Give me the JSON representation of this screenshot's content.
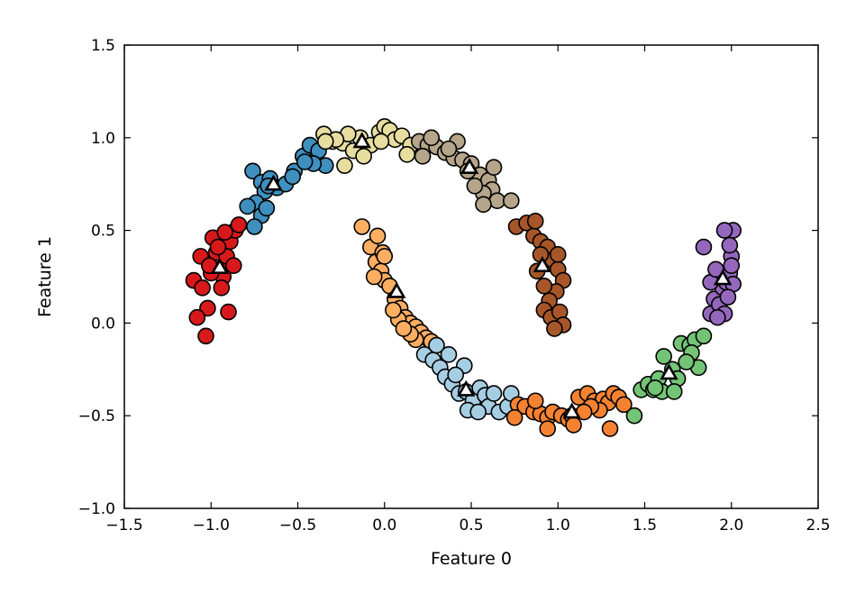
{
  "chart_data": {
    "type": "scatter",
    "title": "",
    "xlabel": "Feature 0",
    "ylabel": "Feature 1",
    "xlim": [
      -1.5,
      2.5
    ],
    "ylim": [
      -1.0,
      1.5
    ],
    "xticks": [
      -1.5,
      -1.0,
      -0.5,
      0.0,
      0.5,
      1.0,
      1.5,
      2.0,
      2.5
    ],
    "yticks": [
      -1.0,
      -0.5,
      0.0,
      0.5,
      1.0,
      1.5
    ],
    "xtick_labels": [
      "−1.5",
      "−1.0",
      "−0.5",
      "0.0",
      "0.5",
      "1.0",
      "1.5",
      "2.0",
      "2.5"
    ],
    "ytick_labels": [
      "−1.0",
      "−0.5",
      "0.0",
      "0.5",
      "1.0",
      "1.5"
    ],
    "grid": false,
    "legend": false,
    "marker_edge_color": "#000000",
    "series": [
      {
        "color": "#d7191c",
        "marker": "circle",
        "points": [
          [
            -1.1,
            0.23
          ],
          [
            -1.05,
            0.19
          ],
          [
            -1.02,
            0.08
          ],
          [
            -0.99,
            0.46
          ],
          [
            -0.97,
            0.38
          ],
          [
            -0.95,
            0.29
          ],
          [
            -0.93,
            0.25
          ],
          [
            -0.91,
            0.36
          ],
          [
            -0.89,
            0.44
          ],
          [
            -0.87,
            0.31
          ],
          [
            -0.86,
            0.5
          ],
          [
            -0.92,
            0.49
          ],
          [
            -1.06,
            0.36
          ],
          [
            -1.0,
            0.27
          ],
          [
            -1.08,
            0.03
          ],
          [
            -1.03,
            -0.07
          ],
          [
            -0.9,
            0.06
          ],
          [
            -0.84,
            0.53
          ],
          [
            -0.96,
            0.41
          ],
          [
            -1.01,
            0.31
          ],
          [
            -0.94,
            0.19
          ]
        ]
      },
      {
        "color": "#3f8fbf",
        "marker": "circle",
        "points": [
          [
            -0.76,
            0.82
          ],
          [
            -0.71,
            0.76
          ],
          [
            -0.69,
            0.71
          ],
          [
            -0.74,
            0.65
          ],
          [
            -0.79,
            0.63
          ],
          [
            -0.71,
            0.58
          ],
          [
            -0.66,
            0.78
          ],
          [
            -0.62,
            0.73
          ],
          [
            -0.57,
            0.75
          ],
          [
            -0.52,
            0.82
          ],
          [
            -0.47,
            0.9
          ],
          [
            -0.43,
            0.96
          ],
          [
            -0.38,
            0.93
          ],
          [
            -0.34,
            0.85
          ],
          [
            -0.41,
            0.86
          ],
          [
            -0.46,
            0.87
          ],
          [
            -0.53,
            0.79
          ],
          [
            -0.67,
            0.74
          ],
          [
            -0.75,
            0.52
          ],
          [
            -0.68,
            0.62
          ]
        ]
      },
      {
        "color": "#e6dd9f",
        "marker": "circle",
        "points": [
          [
            -0.35,
            1.02
          ],
          [
            -0.3,
            0.98
          ],
          [
            -0.24,
            0.97
          ],
          [
            -0.18,
            0.93
          ],
          [
            -0.14,
            1.0
          ],
          [
            -0.08,
            0.96
          ],
          [
            -0.03,
            1.03
          ],
          [
            0.0,
            1.06
          ],
          [
            0.03,
            1.04
          ],
          [
            0.06,
            0.99
          ],
          [
            -0.02,
            0.98
          ],
          [
            -0.21,
            1.02
          ],
          [
            -0.28,
            0.99
          ],
          [
            -0.12,
            0.9
          ],
          [
            -0.23,
            0.85
          ],
          [
            0.1,
            1.01
          ],
          [
            0.15,
            0.96
          ],
          [
            -0.34,
            0.98
          ],
          [
            0.13,
            0.91
          ]
        ]
      },
      {
        "color": "#b5a58a",
        "marker": "circle",
        "points": [
          [
            0.2,
            0.98
          ],
          [
            0.25,
            0.96
          ],
          [
            0.3,
            0.95
          ],
          [
            0.35,
            0.92
          ],
          [
            0.4,
            0.89
          ],
          [
            0.45,
            0.88
          ],
          [
            0.5,
            0.86
          ],
          [
            0.55,
            0.8
          ],
          [
            0.6,
            0.77
          ],
          [
            0.62,
            0.72
          ],
          [
            0.57,
            0.7
          ],
          [
            0.52,
            0.74
          ],
          [
            0.48,
            0.82
          ],
          [
            0.42,
            0.98
          ],
          [
            0.37,
            0.94
          ],
          [
            0.27,
            1.0
          ],
          [
            0.22,
            0.9
          ],
          [
            0.63,
            0.84
          ],
          [
            0.65,
            0.66
          ],
          [
            0.57,
            0.64
          ],
          [
            0.73,
            0.66
          ]
        ]
      },
      {
        "color": "#a65628",
        "marker": "circle",
        "points": [
          [
            0.76,
            0.52
          ],
          [
            0.82,
            0.54
          ],
          [
            0.86,
            0.47
          ],
          [
            0.9,
            0.44
          ],
          [
            0.94,
            0.41
          ],
          [
            0.97,
            0.34
          ],
          [
            1.0,
            0.29
          ],
          [
            1.03,
            0.23
          ],
          [
            0.99,
            0.17
          ],
          [
            0.95,
            0.12
          ],
          [
            0.92,
            0.07
          ],
          [
            0.96,
            0.03
          ],
          [
            1.01,
            0.06
          ],
          [
            1.03,
            -0.01
          ],
          [
            0.98,
            -0.03
          ],
          [
            0.9,
            0.37
          ],
          [
            0.88,
            0.28
          ],
          [
            0.92,
            0.2
          ],
          [
            0.87,
            0.55
          ],
          [
            1.0,
            0.37
          ]
        ]
      },
      {
        "color": "#fdae61",
        "marker": "circle",
        "points": [
          [
            -0.13,
            0.52
          ],
          [
            -0.08,
            0.41
          ],
          [
            -0.05,
            0.33
          ],
          [
            -0.02,
            0.28
          ],
          [
            0.0,
            0.23
          ],
          [
            0.03,
            0.2
          ],
          [
            0.06,
            0.13
          ],
          [
            0.09,
            0.08
          ],
          [
            0.12,
            0.03
          ],
          [
            0.15,
            0.0
          ],
          [
            0.18,
            -0.02
          ],
          [
            0.21,
            -0.05
          ],
          [
            0.24,
            -0.08
          ],
          [
            0.27,
            -0.1
          ],
          [
            0.18,
            -0.09
          ],
          [
            0.15,
            -0.06
          ],
          [
            0.08,
            0.02
          ],
          [
            0.05,
            0.07
          ],
          [
            -0.01,
            0.38
          ],
          [
            -0.04,
            0.47
          ],
          [
            0.11,
            -0.03
          ],
          [
            -0.06,
            0.25
          ],
          [
            0.0,
            0.36
          ]
        ]
      },
      {
        "color": "#a6cee3",
        "marker": "circle",
        "points": [
          [
            0.23,
            -0.17
          ],
          [
            0.28,
            -0.2
          ],
          [
            0.32,
            -0.24
          ],
          [
            0.35,
            -0.29
          ],
          [
            0.39,
            -0.33
          ],
          [
            0.43,
            -0.38
          ],
          [
            0.47,
            -0.37
          ],
          [
            0.51,
            -0.42
          ],
          [
            0.55,
            -0.35
          ],
          [
            0.58,
            -0.39
          ],
          [
            0.6,
            -0.45
          ],
          [
            0.66,
            -0.48
          ],
          [
            0.71,
            -0.45
          ],
          [
            0.73,
            -0.38
          ],
          [
            0.46,
            -0.23
          ],
          [
            0.41,
            -0.28
          ],
          [
            0.3,
            -0.12
          ],
          [
            0.37,
            -0.17
          ],
          [
            0.48,
            -0.47
          ],
          [
            0.54,
            -0.48
          ],
          [
            0.63,
            -0.38
          ]
        ]
      },
      {
        "color": "#f58231",
        "marker": "circle",
        "points": [
          [
            0.77,
            -0.44
          ],
          [
            0.81,
            -0.45
          ],
          [
            0.86,
            -0.48
          ],
          [
            0.9,
            -0.49
          ],
          [
            0.94,
            -0.51
          ],
          [
            0.97,
            -0.48
          ],
          [
            1.02,
            -0.5
          ],
          [
            1.06,
            -0.52
          ],
          [
            1.08,
            -0.5
          ],
          [
            1.12,
            -0.4
          ],
          [
            1.17,
            -0.38
          ],
          [
            1.21,
            -0.42
          ],
          [
            1.26,
            -0.41
          ],
          [
            1.29,
            -0.43
          ],
          [
            1.32,
            -0.38
          ],
          [
            1.35,
            -0.4
          ],
          [
            1.38,
            -0.44
          ],
          [
            1.3,
            -0.57
          ],
          [
            1.24,
            -0.47
          ],
          [
            1.19,
            -0.45
          ],
          [
            0.94,
            -0.57
          ],
          [
            0.75,
            -0.51
          ],
          [
            1.09,
            -0.55
          ],
          [
            1.15,
            -0.48
          ],
          [
            0.87,
            -0.42
          ]
        ]
      },
      {
        "color": "#74c476",
        "marker": "circle",
        "points": [
          [
            1.44,
            -0.5
          ],
          [
            1.48,
            -0.36
          ],
          [
            1.52,
            -0.33
          ],
          [
            1.55,
            -0.36
          ],
          [
            1.58,
            -0.3
          ],
          [
            1.61,
            -0.18
          ],
          [
            1.66,
            -0.25
          ],
          [
            1.69,
            -0.3
          ],
          [
            1.71,
            -0.11
          ],
          [
            1.76,
            -0.12
          ],
          [
            1.79,
            -0.09
          ],
          [
            1.81,
            -0.24
          ],
          [
            1.77,
            -0.16
          ],
          [
            1.74,
            -0.21
          ],
          [
            1.84,
            -0.07
          ],
          [
            1.6,
            -0.37
          ],
          [
            1.67,
            -0.37
          ],
          [
            1.56,
            -0.35
          ]
        ]
      },
      {
        "color": "#9467bd",
        "marker": "circle",
        "points": [
          [
            1.84,
            0.41
          ],
          [
            1.88,
            0.05
          ],
          [
            1.9,
            0.13
          ],
          [
            1.93,
            0.1
          ],
          [
            1.95,
            0.19
          ],
          [
            1.97,
            0.22
          ],
          [
            1.99,
            0.27
          ],
          [
            2.0,
            0.36
          ],
          [
            1.99,
            0.42
          ],
          [
            2.01,
            0.5
          ],
          [
            1.96,
            0.5
          ],
          [
            1.96,
            0.05
          ],
          [
            1.92,
            0.03
          ],
          [
            1.88,
            0.22
          ],
          [
            1.91,
            0.29
          ],
          [
            2.0,
            0.31
          ],
          [
            2.01,
            0.21
          ],
          [
            1.98,
            0.14
          ]
        ]
      },
      {
        "color": "#ffffff",
        "marker": "triangle",
        "points": [
          [
            -0.95,
            0.3
          ],
          [
            -0.64,
            0.75
          ],
          [
            -0.13,
            0.98
          ],
          [
            0.49,
            0.84
          ],
          [
            0.91,
            0.31
          ],
          [
            0.07,
            0.17
          ],
          [
            0.47,
            -0.36
          ],
          [
            1.08,
            -0.48
          ],
          [
            1.64,
            -0.27
          ],
          [
            1.95,
            0.24
          ]
        ]
      }
    ]
  }
}
